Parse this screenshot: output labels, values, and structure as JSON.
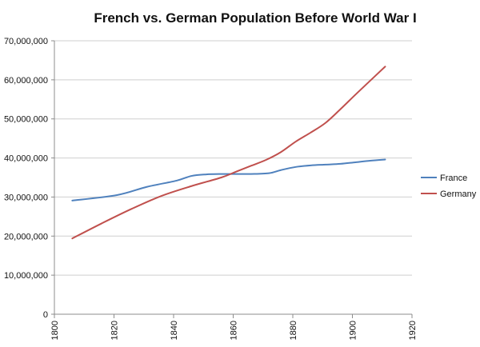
{
  "chart_data": {
    "type": "line",
    "title": "French vs. German Population Before World War I",
    "xlabel": "",
    "ylabel": "",
    "xlim": [
      1800,
      1920
    ],
    "ylim": [
      0,
      70000000
    ],
    "x_ticks": [
      "1800",
      "1820",
      "1840",
      "1860",
      "1880",
      "1900",
      "1920"
    ],
    "y_ticks": [
      "0",
      "10,000,000",
      "20,000,000",
      "30,000,000",
      "40,000,000",
      "50,000,000",
      "60,000,000",
      "70,000,000"
    ],
    "grid": "horizontal",
    "legend_position": "right",
    "series": [
      {
        "name": "France",
        "color": "#4f81bd",
        "x": [
          1806,
          1821,
          1831,
          1841,
          1846,
          1851,
          1856,
          1861,
          1866,
          1872,
          1876,
          1881,
          1886,
          1891,
          1896,
          1901,
          1906,
          1911
        ],
        "y": [
          29100000,
          30500000,
          32600000,
          34200000,
          35400000,
          35800000,
          35900000,
          35900000,
          35900000,
          36100000,
          36900000,
          37700000,
          38100000,
          38300000,
          38500000,
          38900000,
          39300000,
          39600000
        ]
      },
      {
        "name": "Germany",
        "color": "#c0504d",
        "x": [
          1806,
          1816,
          1826,
          1836,
          1846,
          1856,
          1861,
          1866,
          1871,
          1876,
          1881,
          1886,
          1891,
          1896,
          1901,
          1906,
          1911
        ],
        "y": [
          19400000,
          23300000,
          27000000,
          30300000,
          32800000,
          35000000,
          36500000,
          38000000,
          39500000,
          41500000,
          44200000,
          46500000,
          49000000,
          52500000,
          56200000,
          59800000,
          63400000
        ]
      }
    ]
  }
}
